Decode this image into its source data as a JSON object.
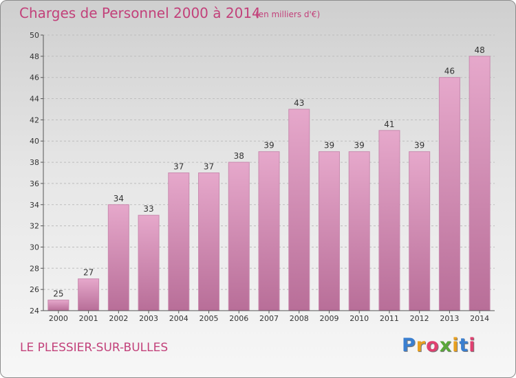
{
  "title": "Charges de Personnel 2000 à 2014",
  "subtitle": "(en milliers d'€)",
  "commune": "LE PLESSIER-SUR-BULLES",
  "logo": {
    "letters": [
      "P",
      "r",
      "o",
      "x",
      "i",
      "t",
      "i"
    ],
    "colors": [
      "#3a7fd0",
      "#e8a020",
      "#e04070",
      "#5aa83a",
      "#e8a020",
      "#3a7fd0",
      "#e04070"
    ]
  },
  "colors": {
    "bar": "#d98ab5",
    "bar_dark": "#b06a90",
    "text_accent": "#c2417a"
  },
  "chart_data": {
    "type": "bar",
    "title": "Charges de Personnel 2000 à 2014",
    "subtitle": "(en milliers d'€)",
    "categories": [
      "2000",
      "2001",
      "2002",
      "2003",
      "2004",
      "2005",
      "2006",
      "2007",
      "2008",
      "2009",
      "2010",
      "2011",
      "2012",
      "2013",
      "2014"
    ],
    "values": [
      25,
      27,
      34,
      33,
      37,
      37,
      38,
      39,
      43,
      39,
      39,
      41,
      39,
      46,
      48
    ],
    "ylim": [
      24,
      50
    ],
    "yticks": [
      24,
      26,
      28,
      30,
      32,
      34,
      36,
      38,
      40,
      42,
      44,
      46,
      48,
      50
    ],
    "grid": true,
    "xlabel": "",
    "ylabel": ""
  }
}
